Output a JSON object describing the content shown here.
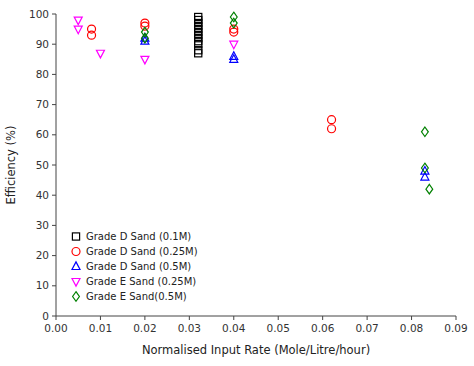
{
  "chart_data": {
    "type": "scatter",
    "xlabel": "Normalised Input Rate (Mole/Litre/hour)",
    "ylabel": "Efficiency (%)",
    "xlim": [
      0.0,
      0.09
    ],
    "ylim": [
      0,
      100
    ],
    "xticks": [
      {
        "value": 0.0,
        "label": "0.00"
      },
      0.01,
      0.02,
      0.03,
      0.04,
      0.05,
      0.06,
      0.07,
      0.08,
      0.09
    ],
    "yticks": [
      0,
      10,
      20,
      30,
      40,
      50,
      60,
      70,
      80,
      90,
      100
    ],
    "grid": false,
    "legend": "lower left",
    "series": [
      {
        "name": "Grade D Sand (0.1M)",
        "color": "black",
        "marker": "square",
        "x": [
          0.032,
          0.032,
          0.032,
          0.032,
          0.032,
          0.032,
          0.032,
          0.032,
          0.032,
          0.032,
          0.032,
          0.032
        ],
        "values": [
          99,
          98,
          97,
          96,
          95,
          94,
          93,
          92,
          91,
          90,
          88,
          87
        ]
      },
      {
        "name": "Grade D Sand (0.25M)",
        "color": "red",
        "marker": "circle",
        "x": [
          0.008,
          0.008,
          0.02,
          0.02,
          0.04,
          0.04,
          0.062,
          0.062
        ],
        "values": [
          95,
          93,
          97,
          96,
          95,
          94,
          65,
          62
        ]
      },
      {
        "name": "Grade D Sand (0.5M)",
        "color": "blue",
        "marker": "triangle-up",
        "x": [
          0.02,
          0.02,
          0.04,
          0.04,
          0.083,
          0.083
        ],
        "values": [
          92,
          91,
          86,
          85,
          48,
          46
        ]
      },
      {
        "name": "Grade E Sand (0.25M)",
        "color": "magenta",
        "marker": "triangle-down",
        "x": [
          0.005,
          0.005,
          0.01,
          0.02,
          0.04
        ],
        "values": [
          98,
          95,
          87,
          85,
          90
        ]
      },
      {
        "name": "Grade E Sand(0.5M)",
        "color": "green",
        "marker": "diamond",
        "x": [
          0.02,
          0.02,
          0.04,
          0.04,
          0.083,
          0.083,
          0.084
        ],
        "values": [
          94,
          92,
          99,
          97,
          61,
          49,
          42
        ]
      }
    ]
  }
}
